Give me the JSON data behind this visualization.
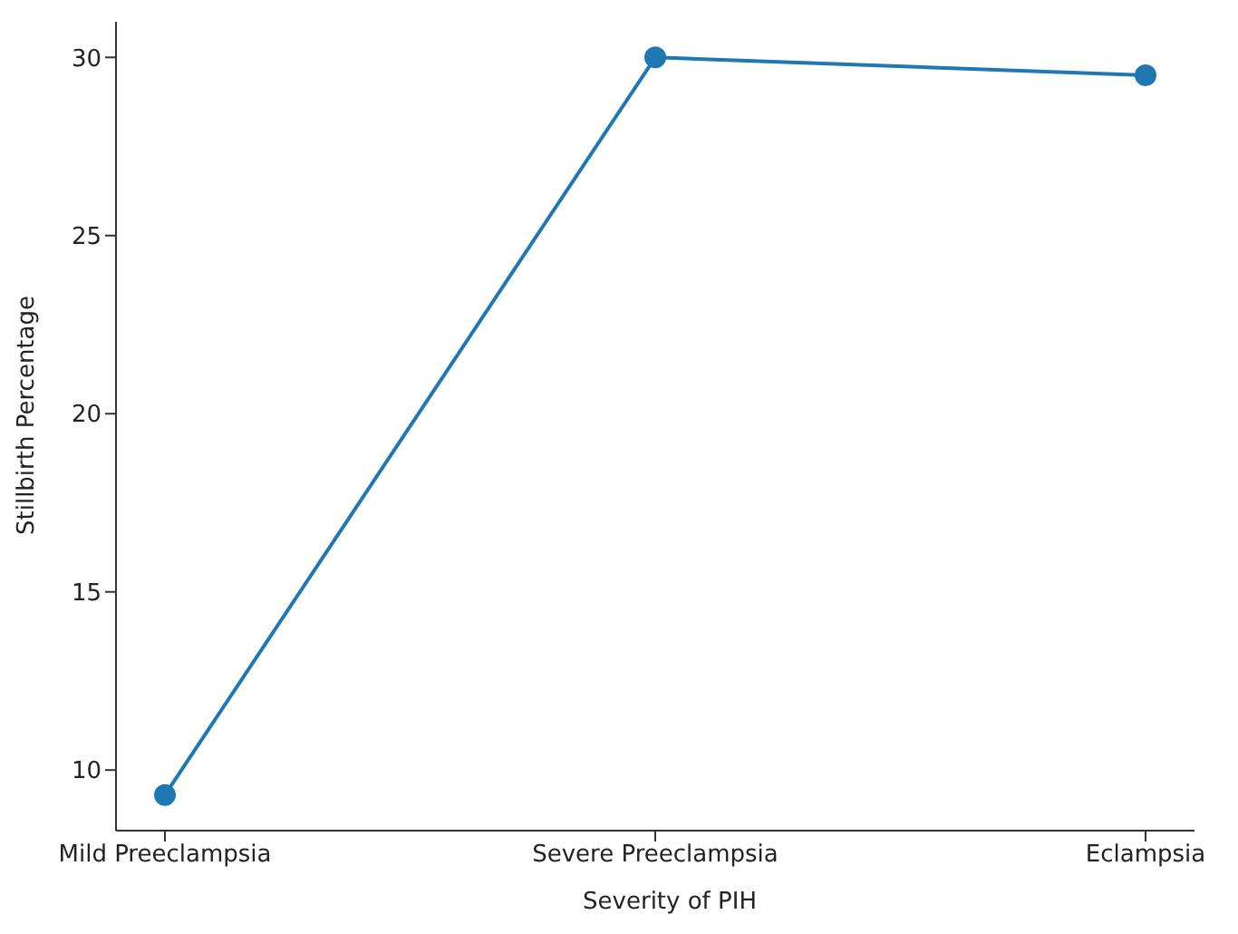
{
  "chart_data": {
    "type": "line",
    "xlabel": "Severity of PIH",
    "ylabel": "Stillbirth Percentage",
    "categories": [
      "Mild Preeclampsia",
      "Severe Preeclampsia",
      "Eclampsia"
    ],
    "series": [
      {
        "color": "#1f77b4",
        "values": [
          9.3,
          30,
          29.5
        ]
      }
    ],
    "ylim": [
      8.3,
      31
    ],
    "yticks": [
      10,
      15,
      20,
      25,
      30
    ],
    "grid": false,
    "legend": false,
    "marker": "circle",
    "line_style": "solid"
  }
}
